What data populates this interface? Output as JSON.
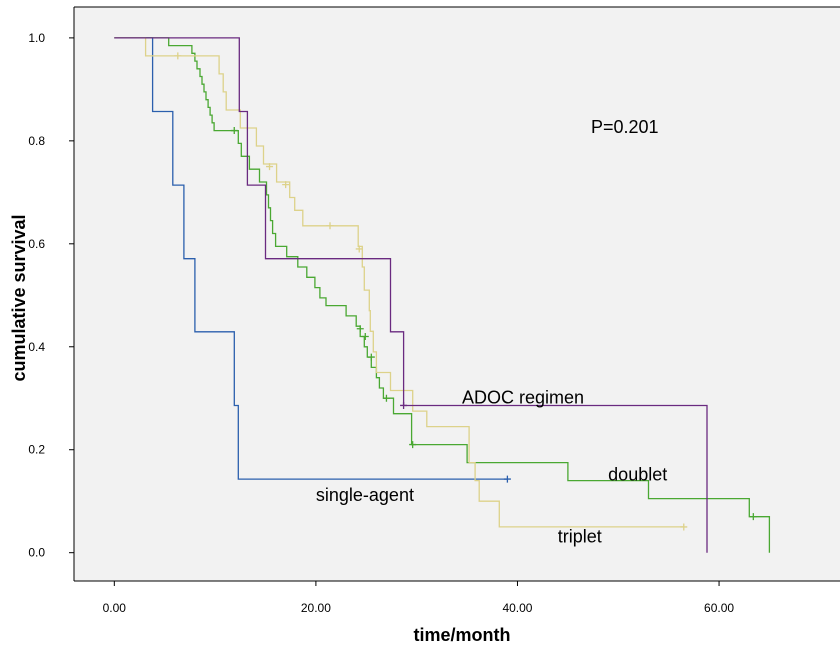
{
  "chart_data": {
    "type": "line",
    "subtype": "kaplan-meier-step",
    "xlabel": "time/month",
    "ylabel": "cumulative survival",
    "xlim": [
      -4,
      72
    ],
    "ylim": [
      -0.055,
      1.06
    ],
    "x_ticks": [
      0,
      20,
      40,
      60
    ],
    "x_tick_labels": [
      "0.00",
      "20.00",
      "40.00",
      "60.00"
    ],
    "y_ticks": [
      0,
      0.2,
      0.4,
      0.6,
      0.8,
      1.0
    ],
    "y_tick_labels": [
      "0.0",
      "0.2",
      "0.4",
      "0.6",
      "0.8",
      "1.0"
    ],
    "grid": false,
    "background": "#f2f2f2",
    "p_value_text": "P=0.201",
    "series": [
      {
        "name": "single-agent",
        "color": "#2b5fad",
        "steps": [
          [
            0,
            1.0
          ],
          [
            3.8,
            0.857
          ],
          [
            5.8,
            0.714
          ],
          [
            6.9,
            0.571
          ],
          [
            8.0,
            0.429
          ],
          [
            11.9,
            0.286
          ],
          [
            12.3,
            0.143
          ],
          [
            39.0,
            0.143
          ]
        ],
        "censored": [
          [
            39.0,
            0.143
          ]
        ]
      },
      {
        "name": "doublet",
        "color": "#4aa832",
        "steps": [
          [
            0,
            1.0
          ],
          [
            5.4,
            0.985
          ],
          [
            7.7,
            0.97
          ],
          [
            8.0,
            0.955
          ],
          [
            8.2,
            0.94
          ],
          [
            8.5,
            0.925
          ],
          [
            8.7,
            0.91
          ],
          [
            8.9,
            0.895
          ],
          [
            9.1,
            0.88
          ],
          [
            9.3,
            0.865
          ],
          [
            9.5,
            0.85
          ],
          [
            9.7,
            0.835
          ],
          [
            9.9,
            0.82
          ],
          [
            12.3,
            0.795
          ],
          [
            12.6,
            0.77
          ],
          [
            13.4,
            0.745
          ],
          [
            14.4,
            0.72
          ],
          [
            15.1,
            0.695
          ],
          [
            15.3,
            0.67
          ],
          [
            15.5,
            0.645
          ],
          [
            15.7,
            0.62
          ],
          [
            16.0,
            0.595
          ],
          [
            17.1,
            0.575
          ],
          [
            18.2,
            0.555
          ],
          [
            19.1,
            0.535
          ],
          [
            19.9,
            0.515
          ],
          [
            20.4,
            0.495
          ],
          [
            21.0,
            0.48
          ],
          [
            23.0,
            0.46
          ],
          [
            24.0,
            0.44
          ],
          [
            24.4,
            0.42
          ],
          [
            24.8,
            0.4
          ],
          [
            25.1,
            0.38
          ],
          [
            25.5,
            0.36
          ],
          [
            26.0,
            0.34
          ],
          [
            26.3,
            0.32
          ],
          [
            26.7,
            0.3
          ],
          [
            27.7,
            0.27
          ],
          [
            29.5,
            0.21
          ],
          [
            35.0,
            0.175
          ],
          [
            45.0,
            0.14
          ],
          [
            53.0,
            0.105
          ],
          [
            63.0,
            0.07
          ],
          [
            65.0,
            0.0
          ]
        ],
        "censored": [
          [
            11.9,
            0.82
          ],
          [
            24.4,
            0.435
          ],
          [
            24.9,
            0.42
          ],
          [
            25.5,
            0.38
          ],
          [
            27.0,
            0.3
          ],
          [
            29.6,
            0.21
          ],
          [
            63.4,
            0.07
          ]
        ]
      },
      {
        "name": "triplet",
        "color": "#ddd28a",
        "steps": [
          [
            0,
            1.0
          ],
          [
            3.1,
            0.965
          ],
          [
            10.4,
            0.93
          ],
          [
            10.8,
            0.895
          ],
          [
            11.1,
            0.86
          ],
          [
            12.5,
            0.825
          ],
          [
            14.1,
            0.79
          ],
          [
            14.8,
            0.755
          ],
          [
            16.1,
            0.72
          ],
          [
            17.4,
            0.69
          ],
          [
            17.9,
            0.665
          ],
          [
            18.7,
            0.635
          ],
          [
            24.2,
            0.595
          ],
          [
            24.6,
            0.555
          ],
          [
            24.8,
            0.51
          ],
          [
            25.3,
            0.47
          ],
          [
            25.4,
            0.43
          ],
          [
            25.7,
            0.39
          ],
          [
            26.0,
            0.35
          ],
          [
            27.4,
            0.315
          ],
          [
            29.6,
            0.275
          ],
          [
            31.0,
            0.245
          ],
          [
            35.2,
            0.175
          ],
          [
            35.8,
            0.14
          ],
          [
            36.2,
            0.1
          ],
          [
            38.2,
            0.05
          ],
          [
            56.5,
            0.05
          ]
        ],
        "censored": [
          [
            6.3,
            0.965
          ],
          [
            15.4,
            0.75
          ],
          [
            17.0,
            0.715
          ],
          [
            21.4,
            0.635
          ],
          [
            24.3,
            0.59
          ],
          [
            56.5,
            0.05
          ]
        ]
      },
      {
        "name": "ADOC regimen",
        "color": "#6a2a80",
        "steps": [
          [
            0,
            1.0
          ],
          [
            12.4,
            0.857
          ],
          [
            13.2,
            0.714
          ],
          [
            15.0,
            0.571
          ],
          [
            27.4,
            0.429
          ],
          [
            28.7,
            0.286
          ],
          [
            58.8,
            0.0
          ]
        ],
        "censored": [
          [
            28.7,
            0.286
          ]
        ]
      }
    ],
    "annotations": [
      {
        "text": "ADOC regimen",
        "series": "ADOC regimen",
        "x": 34.5,
        "y": 0.29
      },
      {
        "text": "doublet",
        "series": "doublet",
        "x": 49.0,
        "y": 0.14
      },
      {
        "text": "single-agent",
        "series": "single-agent",
        "x": 20.0,
        "y": 0.1
      },
      {
        "text": "triplet",
        "series": "triplet",
        "x": 44.0,
        "y": 0.02
      }
    ]
  }
}
